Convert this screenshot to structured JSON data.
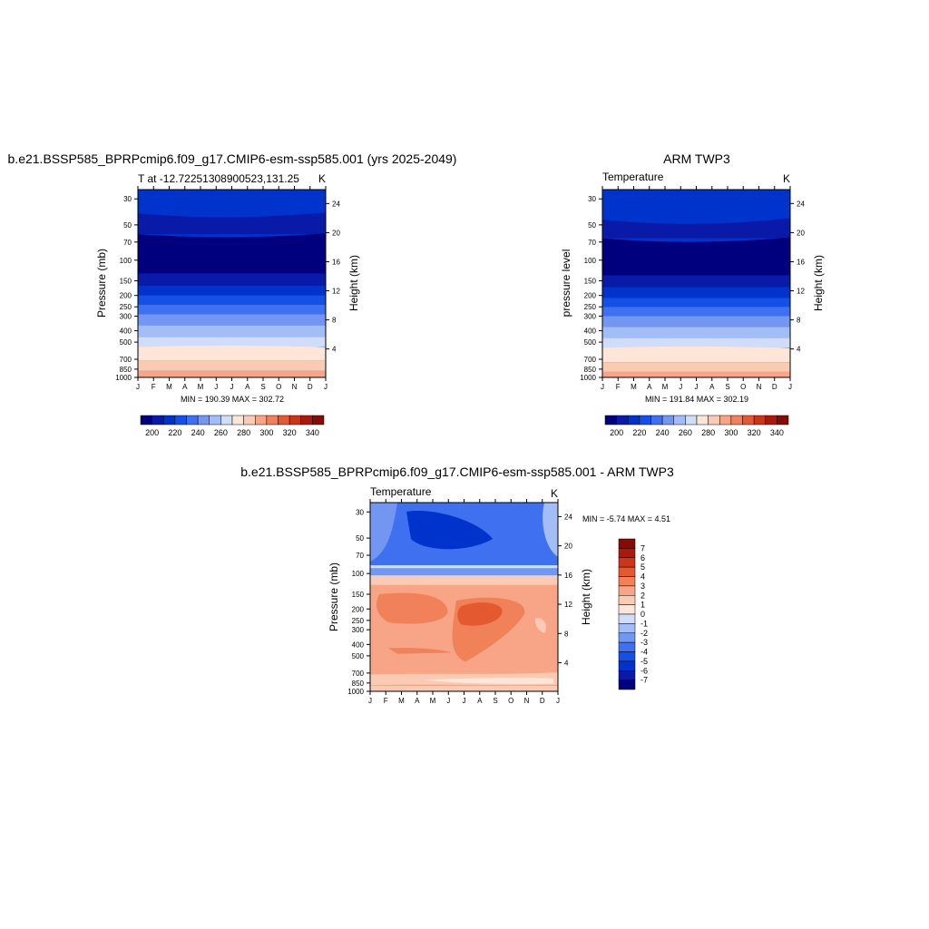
{
  "panel_left": {
    "title": "b.e21.BSSP585_BPRPcmip6.f09_g17.CMIP6-esm-ssp585.001 (yrs 2025-2049)",
    "subtitle_left": "T at -12.72251308900523,131.25",
    "units": "K",
    "ylabel": "Pressure (mb)",
    "ylabel_right": "Height (km)",
    "stats": "MIN = 190.39 MAX = 302.72"
  },
  "panel_right": {
    "title": "ARM TWP3",
    "subtitle_left": "Temperature",
    "units": "K",
    "ylabel": "pressure level",
    "ylabel_right": "Height (km)",
    "stats": "MIN = 191.84 MAX = 302.19"
  },
  "panel_diff": {
    "title": "b.e21.BSSP585_BPRPcmip6.f09_g17.CMIP6-esm-ssp585.001 - ARM TWP3",
    "subtitle_left": "Temperature",
    "units": "K",
    "ylabel": "Pressure (mb)",
    "ylabel_right": "Height (km)",
    "stats": "MIN =  -5.74 MAX =   4.51"
  },
  "chart_data": [
    {
      "type": "heatmap",
      "title": "b.e21.BSSP585_BPRPcmip6.f09_g17.CMIP6-esm-ssp585.001 (yrs 2025-2049)",
      "x_ticks": [
        "J",
        "F",
        "M",
        "A",
        "M",
        "J",
        "J",
        "A",
        "S",
        "O",
        "N",
        "D",
        "J"
      ],
      "y_ticks": [
        "30",
        "50",
        "70",
        "100",
        "150",
        "200",
        "250",
        "300",
        "400",
        "500",
        "700",
        "850",
        "1000"
      ],
      "y_scale": "log",
      "y_right_ticks": [
        "24",
        "20",
        "16",
        "12",
        "8",
        "4"
      ],
      "ylabel": "Pressure (mb)",
      "ylabel_right": "Height (km)",
      "min": 190.39,
      "max": 302.72,
      "colorbar_ticks": [
        "200",
        "220",
        "240",
        "260",
        "280",
        "300",
        "320",
        "340"
      ]
    },
    {
      "type": "heatmap",
      "title": "ARM TWP3",
      "x_ticks": [
        "J",
        "F",
        "M",
        "A",
        "M",
        "J",
        "J",
        "A",
        "S",
        "O",
        "N",
        "D",
        "J"
      ],
      "y_ticks": [
        "30",
        "50",
        "70",
        "100",
        "150",
        "200",
        "250",
        "300",
        "400",
        "500",
        "700",
        "850",
        "1000"
      ],
      "y_scale": "log",
      "y_right_ticks": [
        "24",
        "20",
        "16",
        "12",
        "8",
        "4"
      ],
      "ylabel": "pressure level",
      "ylabel_right": "Height (km)",
      "min": 191.84,
      "max": 302.19,
      "colorbar_ticks": [
        "200",
        "220",
        "240",
        "260",
        "280",
        "300",
        "320",
        "340"
      ]
    },
    {
      "type": "heatmap",
      "title": "b.e21.BSSP585_BPRPcmip6.f09_g17.CMIP6-esm-ssp585.001 - ARM TWP3",
      "x_ticks": [
        "J",
        "F",
        "M",
        "A",
        "M",
        "J",
        "J",
        "A",
        "S",
        "O",
        "N",
        "D",
        "J"
      ],
      "y_ticks": [
        "30",
        "50",
        "70",
        "100",
        "150",
        "200",
        "250",
        "300",
        "400",
        "500",
        "700",
        "850",
        "1000"
      ],
      "y_scale": "log",
      "y_right_ticks": [
        "24",
        "20",
        "16",
        "12",
        "8",
        "4"
      ],
      "ylabel": "Pressure (mb)",
      "ylabel_right": "Height (km)",
      "min": -5.74,
      "max": 4.51,
      "colorbar_ticks": [
        "7",
        "6",
        "5",
        "4",
        "3",
        "2",
        "1",
        "0",
        "-1",
        "-2",
        "-3",
        "-4",
        "-5",
        "-6",
        "-7"
      ]
    }
  ],
  "colors": {
    "temp_palette": [
      "#00007f",
      "#0a1aa8",
      "#0033cc",
      "#1450e6",
      "#3f70f0",
      "#7396f2",
      "#a3bdf6",
      "#cfdcfa",
      "#fde6d8",
      "#fbcab2",
      "#f7a586",
      "#f08158",
      "#e4592f",
      "#cc3518",
      "#aa1a0c",
      "#850b07"
    ],
    "diff_palette": [
      "#00007f",
      "#0a1aa8",
      "#0033cc",
      "#1450e6",
      "#3f70f0",
      "#7396f2",
      "#a3bdf6",
      "#cfdcfa",
      "#ffffff",
      "#fde6d8",
      "#fbcab2",
      "#f7a586",
      "#f08158",
      "#e4592f",
      "#cc3518",
      "#aa1a0c",
      "#850b07"
    ]
  }
}
